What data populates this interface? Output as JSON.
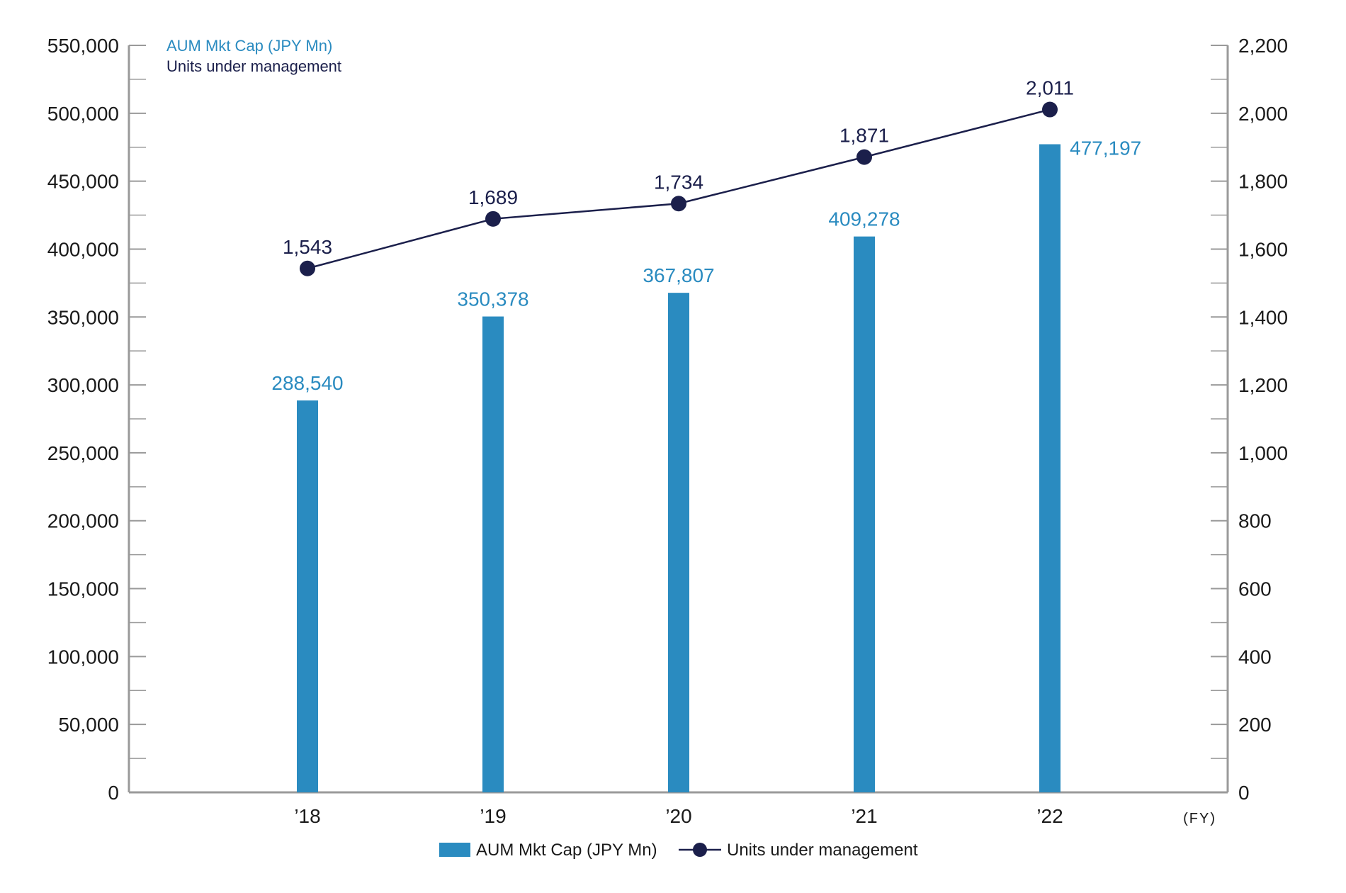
{
  "chart_data": {
    "type": "bar",
    "categories": [
      "’18",
      "’19",
      "’20",
      "’21",
      "’22"
    ],
    "x_unit": "(FY)",
    "series": [
      {
        "name": "AUM Mkt Cap (JPY Mn)",
        "type": "bar",
        "axis": "left",
        "color": "#2a8bc0",
        "values": [
          288540,
          350378,
          367807,
          409278,
          477197
        ],
        "labels": [
          "288,540",
          "350,378",
          "367,807",
          "409,278",
          "477,197"
        ]
      },
      {
        "name": "Units under management",
        "type": "line",
        "axis": "right",
        "color": "#1b1f4b",
        "values": [
          1543,
          1689,
          1734,
          1871,
          2011
        ],
        "labels": [
          "1,543",
          "1,689",
          "1,734",
          "1,871",
          "2,011"
        ]
      }
    ],
    "y_left": {
      "range": [
        0,
        550000
      ],
      "ticks": [
        0,
        50000,
        100000,
        150000,
        200000,
        250000,
        300000,
        350000,
        400000,
        450000,
        500000,
        550000
      ],
      "tick_labels": [
        "0",
        "50,000",
        "100,000",
        "150,000",
        "200,000",
        "250,000",
        "300,000",
        "350,000",
        "400,000",
        "450,000",
        "500,000",
        "550,000"
      ]
    },
    "y_right": {
      "range": [
        0,
        2200
      ],
      "ticks": [
        0,
        200,
        400,
        600,
        800,
        1000,
        1200,
        1400,
        1600,
        1800,
        2000,
        2200
      ],
      "tick_labels": [
        "0",
        "200",
        "400",
        "600",
        "800",
        "1,000",
        "1,200",
        "1,400",
        "1,600",
        "1,800",
        "2,000",
        "2,200"
      ]
    },
    "axis_notes": [
      "AUM Mkt Cap (JPY Mn)",
      "Units under management"
    ],
    "legend": {
      "position": "bottom-center",
      "items": [
        "AUM Mkt Cap (JPY Mn)",
        "Units under management"
      ]
    },
    "grid": false,
    "colors": {
      "axis": "#9a9a9a",
      "bar": "#2a8bc0",
      "line": "#1b1f4b"
    }
  }
}
